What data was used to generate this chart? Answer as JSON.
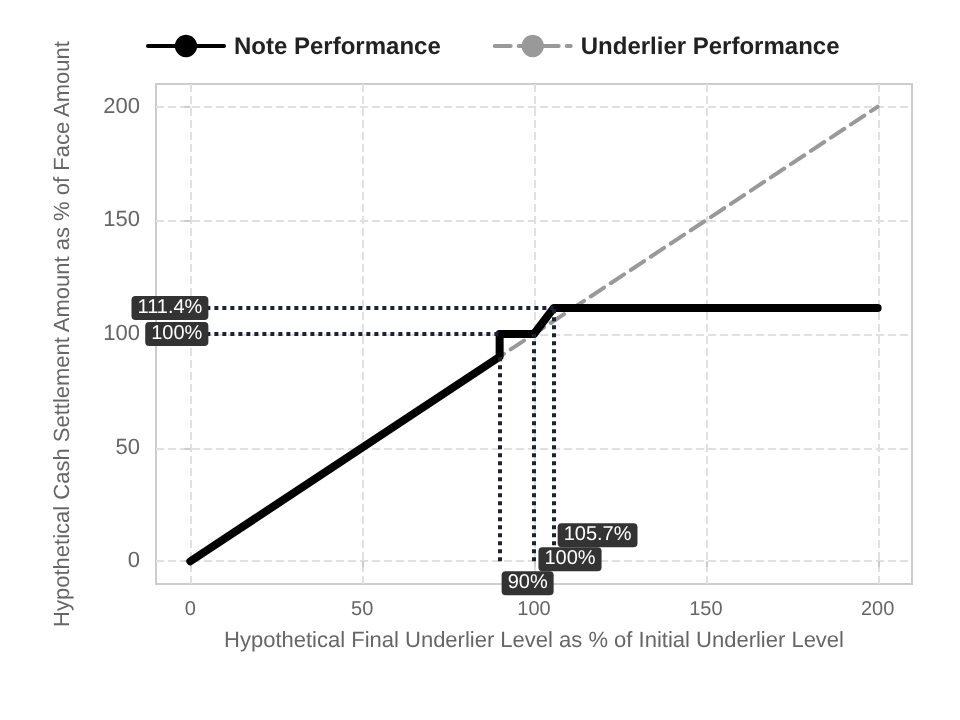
{
  "chart_data": {
    "type": "line",
    "xlabel": "Hypothetical Final Underlier Level as % of Initial Underlier Level",
    "ylabel": "Hypothetical Cash Settlement Amount as % of Face Amount",
    "series": [
      {
        "name": "Note Performance",
        "color": "#000000",
        "line_style": "solid",
        "x": [
          0,
          90,
          90,
          100,
          105.7,
          200
        ],
        "values": [
          0,
          90,
          100,
          100,
          111.4,
          111.4
        ]
      },
      {
        "name": "Underlier Performance",
        "color": "#999999",
        "line_style": "dashed",
        "x": [
          0,
          200
        ],
        "values": [
          0,
          200
        ]
      }
    ],
    "ref_lines": [
      {
        "axis": "y",
        "value": 111.4,
        "label": "111.4%",
        "line_style": "dotted",
        "color": "#1a2233"
      },
      {
        "axis": "y",
        "value": 100,
        "label": "100%",
        "line_style": "dotted",
        "color": "#1a2233"
      },
      {
        "axis": "x",
        "value": 90,
        "label": "90%",
        "line_style": "dotted",
        "color": "#1a2233"
      },
      {
        "axis": "x",
        "value": 100,
        "label": "100%",
        "line_style": "dotted",
        "color": "#1a2233"
      },
      {
        "axis": "x",
        "value": 105.7,
        "label": "105.7%",
        "line_style": "dotted",
        "color": "#1a2233"
      }
    ],
    "xlim": [
      -10,
      210
    ],
    "xticks": [
      0,
      50,
      100,
      150,
      200
    ],
    "ylim": [
      -10,
      210
    ],
    "yticks": [
      0,
      50,
      100,
      150,
      200
    ],
    "grid": true,
    "legend": "top",
    "marker": "none"
  }
}
